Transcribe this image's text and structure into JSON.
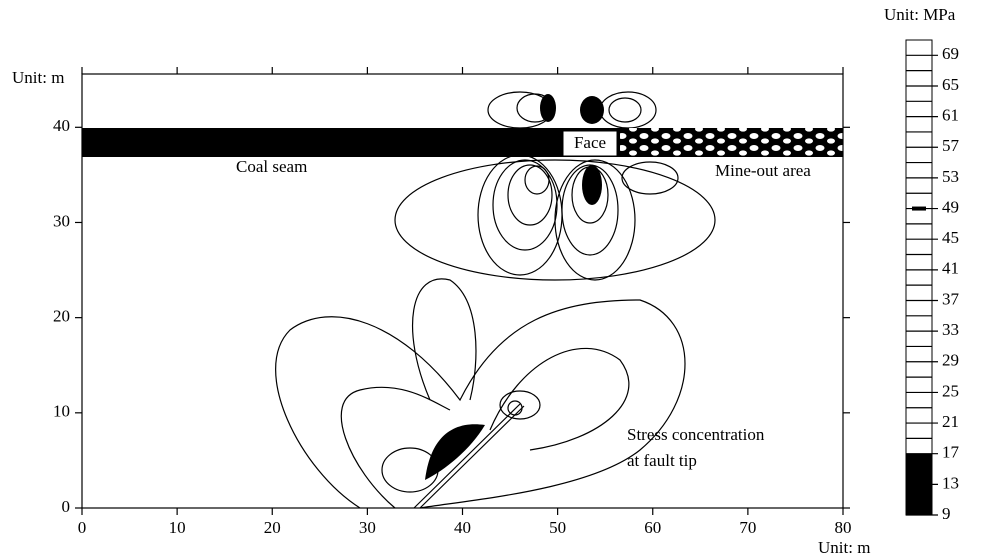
{
  "chart_data": {
    "type": "contour",
    "x_unit_label": "Unit: m",
    "y_unit_label": "Unit: m",
    "xlim": [
      0,
      80
    ],
    "ylim": [
      0,
      45.6
    ],
    "xticks": [
      0,
      10,
      20,
      30,
      40,
      50,
      60,
      70,
      80
    ],
    "yticks": [
      0,
      10,
      20,
      30,
      40
    ],
    "annotations": {
      "coal_seam": "Coal seam",
      "face": "Face",
      "mine_out": "Mine-out area",
      "stress_1": "Stress concentration",
      "stress_2": "at fault tip"
    },
    "colorbar": {
      "title": "Unit: MPa",
      "lim": [
        9,
        71
      ],
      "ticks": [
        9,
        13,
        17,
        21,
        25,
        29,
        33,
        37,
        41,
        45,
        49,
        53,
        57,
        61,
        65,
        69
      ],
      "filled_below": 17,
      "marker": 49
    }
  }
}
